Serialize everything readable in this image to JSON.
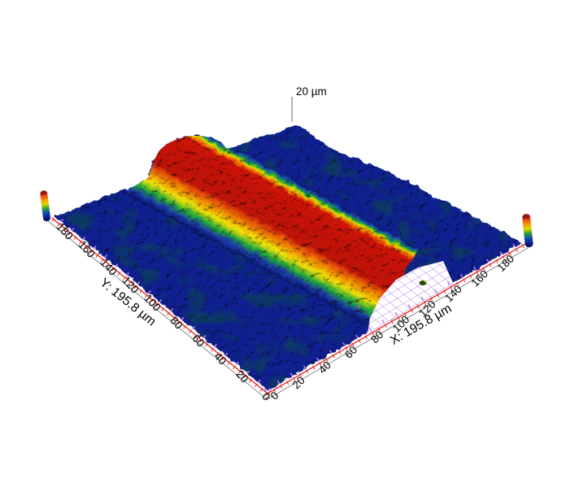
{
  "figure": {
    "kind": "3D surface topography measurement (profilometer view)",
    "background": "#ffffff"
  },
  "scale_indicator": {
    "label": "20 µm"
  },
  "axes": {
    "x": {
      "title": "X: 195.8 µm",
      "max_um": 195.8,
      "tick_step_um": 20,
      "tick_labels": [
        "0",
        "20",
        "40",
        "60",
        "80",
        "100",
        "120",
        "140",
        "160",
        "180"
      ]
    },
    "y": {
      "title": "Y: 195.8 µm",
      "max_um": 195.8,
      "tick_step_um": 20,
      "tick_labels": [
        "0",
        "20",
        "40",
        "60",
        "80",
        "100",
        "120",
        "140",
        "160",
        "180"
      ]
    }
  },
  "colors": {
    "axis_line": "#e23030",
    "axis_outer_line": "#8a8a8a",
    "base_grid_violet": "#b87ae8",
    "floor_blue": "#102090",
    "floor_teal_patch": "#0a5242",
    "scale_line": "#666666",
    "text": "#000000"
  },
  "ridge_gradient": [
    [
      0.0,
      "#0a1468"
    ],
    [
      0.03,
      "#1f4ab4"
    ],
    [
      0.06,
      "#19a43c"
    ],
    [
      0.09,
      "#e2dc00"
    ],
    [
      0.12,
      "#f07800"
    ],
    [
      0.155,
      "#cf1408"
    ],
    [
      0.32,
      "#c41208"
    ],
    [
      0.55,
      "#c01408"
    ],
    [
      0.6,
      "#e24a0a"
    ],
    [
      0.68,
      "#f29600"
    ],
    [
      0.76,
      "#f0e20a"
    ],
    [
      0.85,
      "#22aa38"
    ],
    [
      0.93,
      "#1a3aa8"
    ],
    [
      1.0,
      "#0a1468"
    ]
  ],
  "height_bar_gradient": [
    [
      0.0,
      "#96201a"
    ],
    [
      0.07,
      "#c81e10"
    ],
    [
      0.2,
      "#ee5a10"
    ],
    [
      0.33,
      "#f5a800"
    ],
    [
      0.45,
      "#ddd800"
    ],
    [
      0.58,
      "#2ca830"
    ],
    [
      0.74,
      "#1644bc"
    ],
    [
      0.9,
      "#0a1880"
    ],
    [
      1.0,
      "#060f50"
    ]
  ],
  "chart_data": {
    "type": "heatmap",
    "title": "",
    "x_label": "X: 195.8 µm",
    "y_label": "Y: 195.8 µm",
    "x_range_um": [
      0,
      195.8
    ],
    "y_range_um": [
      0,
      195.8
    ],
    "x_ticks": [
      0,
      20,
      40,
      60,
      80,
      100,
      120,
      140,
      160,
      180
    ],
    "y_ticks": [
      0,
      20,
      40,
      60,
      80,
      100,
      120,
      140,
      160,
      180
    ],
    "z_scale_bar_um": 20,
    "grid": "magenta base mesh visible where surface data is cut away near x≈75–130 µm at y≈0",
    "legend_position": "height reference color columns at left and right base corners",
    "surface": {
      "description": "rough low plane with one straight raised ridge crossing the full field",
      "baseline_height_um": [
        0,
        4
      ],
      "baseline_color": "dark blue (rainbow colormap low end)",
      "ridge": {
        "orientation": "parallel to Y axis",
        "center_x_um": 100,
        "top_width_um": 30,
        "base_width_um": 55,
        "height_um": 18,
        "extent_y_um": [
          0,
          195.8
        ],
        "top_color": "red (rainbow colormap high end)"
      },
      "colormap": "rainbow: blue=low, green/yellow/orange=mid, red=high"
    }
  }
}
